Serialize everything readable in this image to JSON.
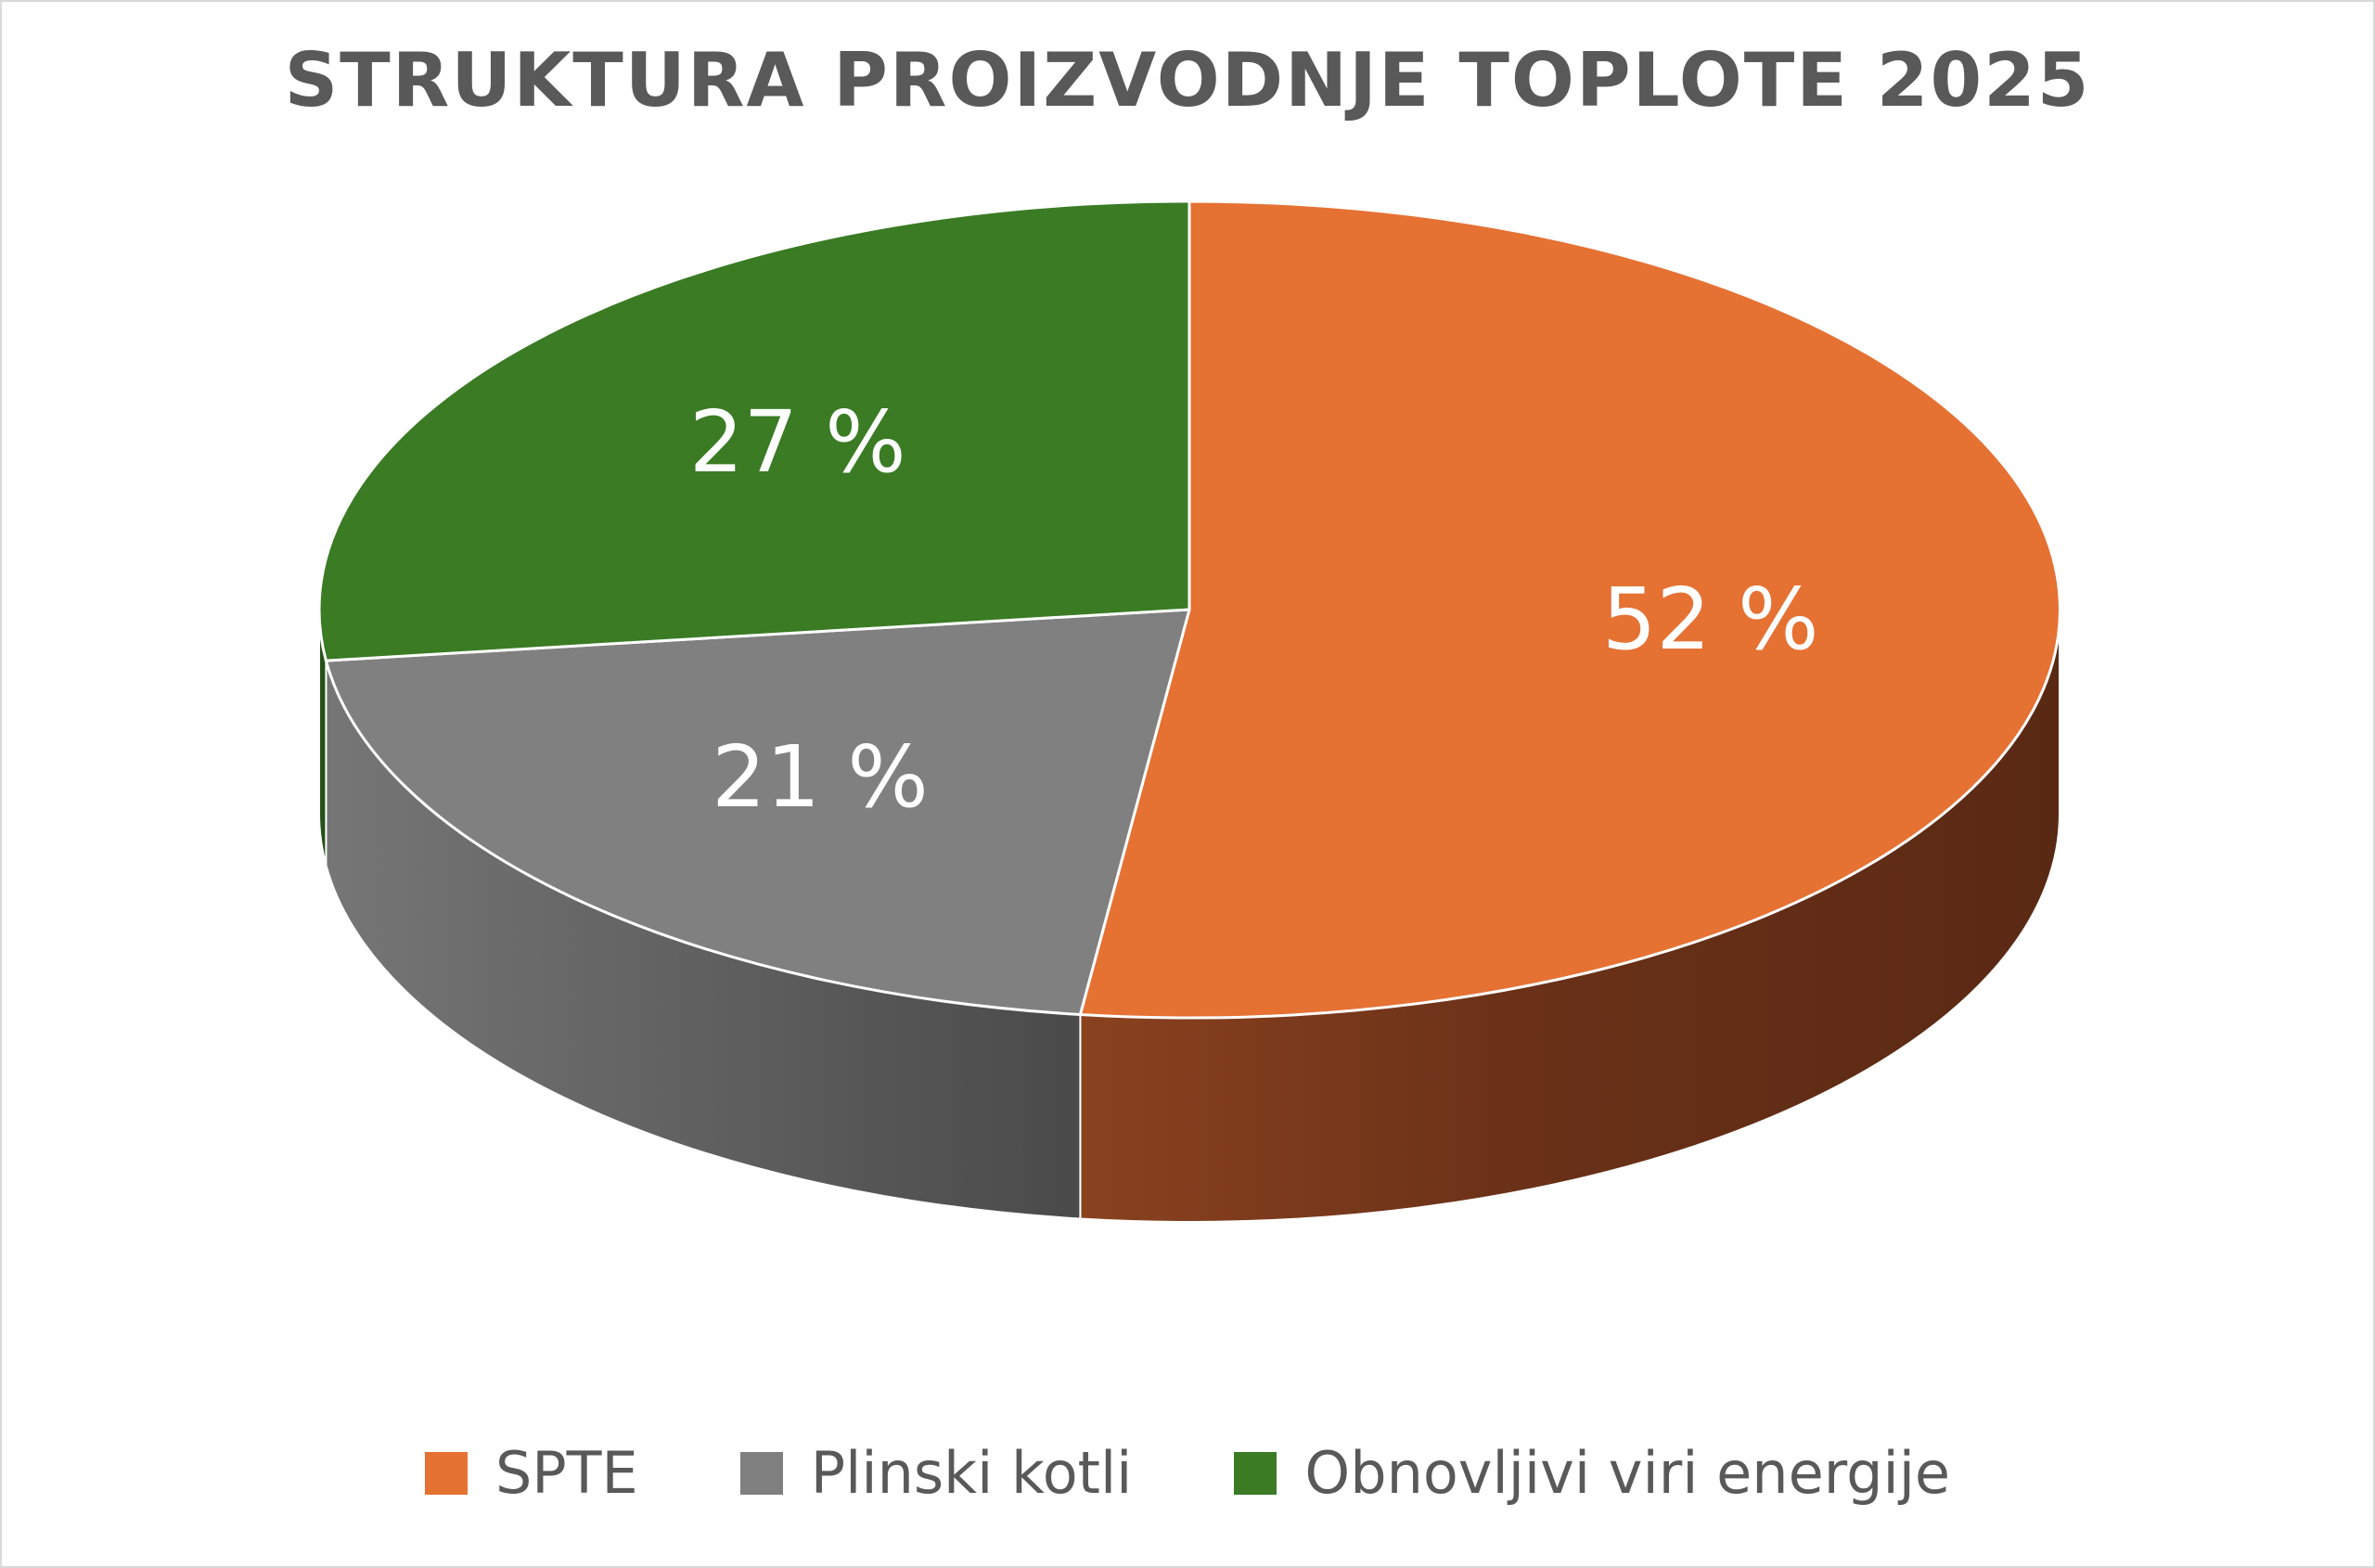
{
  "chart_data": {
    "type": "pie",
    "title": "STRUKTURA PROIZVODNJE TOPLOTE 2025",
    "categories": [
      "SPTE",
      "Plinski kotli",
      "Obnovljivi viri energije"
    ],
    "values": [
      52,
      21,
      27
    ],
    "unit": "%",
    "data_labels": [
      "52 %",
      "21 %",
      "27 %"
    ],
    "colors": [
      "#E57133",
      "#808080",
      "#3A7B24"
    ],
    "side_colors": [
      "#8A3F1C",
      "#6A6A6A",
      "#2A5A1A"
    ],
    "legend_position": "bottom",
    "style": "3d"
  }
}
